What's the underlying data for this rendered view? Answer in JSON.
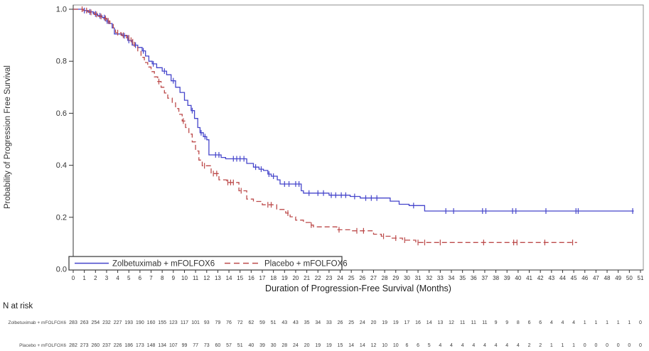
{
  "chart_data": {
    "type": "line",
    "subtype": "kaplan-meier-step",
    "title": "",
    "xlabel": "Duration of Progression-Free Survival (Months)",
    "ylabel": "Probability of Progression Free Survival",
    "xlim": [
      0,
      51
    ],
    "ylim": [
      0.0,
      1.0
    ],
    "grid": false,
    "legend_position": "inside-bottom-left",
    "x_ticks": [
      0,
      1,
      2,
      3,
      4,
      5,
      6,
      7,
      8,
      9,
      10,
      11,
      12,
      13,
      14,
      15,
      16,
      17,
      18,
      19,
      20,
      21,
      22,
      23,
      24,
      25,
      26,
      27,
      28,
      29,
      30,
      31,
      32,
      33,
      34,
      35,
      36,
      37,
      38,
      39,
      40,
      41,
      42,
      43,
      44,
      45,
      46,
      47,
      48,
      49,
      50,
      51
    ],
    "y_ticks": [
      0.0,
      0.2,
      0.4,
      0.6,
      0.8,
      1.0
    ],
    "y_tick_labels": [
      "0.0",
      "0.2",
      "0.4",
      "0.6",
      "0.8",
      "1.0"
    ],
    "frame_color": "#8f8f8f",
    "axis_color": "#333333",
    "series": [
      {
        "name": "Zolbetuximab + mFOLFOX6",
        "color": "#4545cb",
        "line_style": "solid",
        "end_time": 50.4,
        "steps": [
          [
            0,
            1.0
          ],
          [
            0.9,
            0.995
          ],
          [
            1.3,
            0.99
          ],
          [
            1.8,
            0.982
          ],
          [
            2.2,
            0.975
          ],
          [
            2.6,
            0.968
          ],
          [
            2.9,
            0.955
          ],
          [
            3.2,
            0.945
          ],
          [
            3.5,
            0.928
          ],
          [
            3.7,
            0.905
          ],
          [
            4.4,
            0.898
          ],
          [
            4.9,
            0.88
          ],
          [
            5.3,
            0.862
          ],
          [
            5.8,
            0.853
          ],
          [
            6.2,
            0.84
          ],
          [
            6.5,
            0.82
          ],
          [
            6.8,
            0.8
          ],
          [
            7.1,
            0.79
          ],
          [
            7.5,
            0.775
          ],
          [
            8.0,
            0.762
          ],
          [
            8.4,
            0.748
          ],
          [
            8.8,
            0.725
          ],
          [
            9.2,
            0.7
          ],
          [
            9.6,
            0.68
          ],
          [
            10.0,
            0.65
          ],
          [
            10.3,
            0.63
          ],
          [
            10.6,
            0.61
          ],
          [
            10.9,
            0.58
          ],
          [
            11.2,
            0.545
          ],
          [
            11.4,
            0.525
          ],
          [
            11.7,
            0.51
          ],
          [
            12.0,
            0.498
          ],
          [
            12.2,
            0.44
          ],
          [
            13.3,
            0.43
          ],
          [
            13.7,
            0.425
          ],
          [
            15.6,
            0.407
          ],
          [
            16.2,
            0.393
          ],
          [
            16.7,
            0.385
          ],
          [
            17.1,
            0.38
          ],
          [
            17.5,
            0.366
          ],
          [
            17.8,
            0.358
          ],
          [
            18.35,
            0.344
          ],
          [
            18.6,
            0.328
          ],
          [
            20.5,
            0.302
          ],
          [
            20.7,
            0.293
          ],
          [
            23.0,
            0.285
          ],
          [
            24.9,
            0.28
          ],
          [
            25.8,
            0.274
          ],
          [
            28.5,
            0.262
          ],
          [
            29.3,
            0.25
          ],
          [
            30.2,
            0.245
          ],
          [
            31.6,
            0.224
          ]
        ],
        "censor_marks": [
          [
            1.0,
            0.995
          ],
          [
            1.5,
            0.99
          ],
          [
            2.0,
            0.982
          ],
          [
            2.4,
            0.975
          ],
          [
            2.8,
            0.968
          ],
          [
            3.05,
            0.955
          ],
          [
            4.6,
            0.898
          ],
          [
            5.0,
            0.88
          ],
          [
            5.6,
            0.862
          ],
          [
            6.3,
            0.84
          ],
          [
            7.2,
            0.79
          ],
          [
            8.2,
            0.762
          ],
          [
            9.0,
            0.725
          ],
          [
            10.7,
            0.61
          ],
          [
            11.5,
            0.525
          ],
          [
            11.85,
            0.51
          ],
          [
            12.8,
            0.44
          ],
          [
            13.1,
            0.44
          ],
          [
            14.4,
            0.425
          ],
          [
            14.7,
            0.425
          ],
          [
            15.0,
            0.425
          ],
          [
            15.35,
            0.425
          ],
          [
            16.4,
            0.393
          ],
          [
            16.9,
            0.385
          ],
          [
            17.6,
            0.366
          ],
          [
            18.0,
            0.358
          ],
          [
            19.0,
            0.328
          ],
          [
            19.4,
            0.328
          ],
          [
            20.0,
            0.328
          ],
          [
            20.3,
            0.328
          ],
          [
            21.2,
            0.293
          ],
          [
            22.0,
            0.293
          ],
          [
            22.5,
            0.293
          ],
          [
            23.2,
            0.285
          ],
          [
            23.6,
            0.285
          ],
          [
            24.1,
            0.285
          ],
          [
            24.5,
            0.285
          ],
          [
            25.3,
            0.28
          ],
          [
            26.3,
            0.274
          ],
          [
            26.8,
            0.274
          ],
          [
            27.3,
            0.274
          ],
          [
            30.6,
            0.245
          ],
          [
            33.5,
            0.224
          ],
          [
            34.2,
            0.224
          ],
          [
            36.8,
            0.224
          ],
          [
            37.1,
            0.224
          ],
          [
            39.5,
            0.224
          ],
          [
            39.8,
            0.224
          ],
          [
            42.5,
            0.224
          ],
          [
            45.2,
            0.224
          ],
          [
            45.4,
            0.224
          ],
          [
            50.3,
            0.224
          ]
        ]
      },
      {
        "name": "Placebo + mFOLFOX6",
        "color": "#bc4a4a",
        "line_style": "dashed",
        "end_time": 45.3,
        "steps": [
          [
            0,
            1.0
          ],
          [
            0.9,
            0.995
          ],
          [
            1.4,
            0.988
          ],
          [
            1.9,
            0.98
          ],
          [
            2.3,
            0.972
          ],
          [
            2.7,
            0.965
          ],
          [
            3.0,
            0.955
          ],
          [
            3.3,
            0.945
          ],
          [
            3.6,
            0.928
          ],
          [
            3.8,
            0.91
          ],
          [
            4.3,
            0.9
          ],
          [
            4.8,
            0.89
          ],
          [
            5.2,
            0.875
          ],
          [
            5.5,
            0.855
          ],
          [
            5.8,
            0.838
          ],
          [
            6.1,
            0.815
          ],
          [
            6.4,
            0.795
          ],
          [
            6.7,
            0.778
          ],
          [
            7.0,
            0.76
          ],
          [
            7.3,
            0.74
          ],
          [
            7.6,
            0.722
          ],
          [
            7.9,
            0.7
          ],
          [
            8.2,
            0.678
          ],
          [
            8.5,
            0.658
          ],
          [
            8.9,
            0.64
          ],
          [
            9.2,
            0.618
          ],
          [
            9.5,
            0.596
          ],
          [
            9.8,
            0.57
          ],
          [
            10.1,
            0.545
          ],
          [
            10.4,
            0.52
          ],
          [
            10.7,
            0.49
          ],
          [
            11.0,
            0.455
          ],
          [
            11.3,
            0.42
          ],
          [
            11.6,
            0.398
          ],
          [
            12.4,
            0.368
          ],
          [
            13.1,
            0.344
          ],
          [
            13.8,
            0.334
          ],
          [
            14.9,
            0.302
          ],
          [
            15.6,
            0.27
          ],
          [
            16.2,
            0.261
          ],
          [
            17.0,
            0.248
          ],
          [
            18.3,
            0.23
          ],
          [
            19.1,
            0.216
          ],
          [
            19.5,
            0.202
          ],
          [
            20.0,
            0.189
          ],
          [
            20.7,
            0.18
          ],
          [
            21.3,
            0.17
          ],
          [
            21.6,
            0.163
          ],
          [
            23.7,
            0.152
          ],
          [
            25.0,
            0.148
          ],
          [
            27.0,
            0.135
          ],
          [
            27.7,
            0.127
          ],
          [
            28.6,
            0.12
          ],
          [
            29.6,
            0.112
          ],
          [
            30.8,
            0.103
          ]
        ],
        "censor_marks": [
          [
            0.8,
            1.0
          ],
          [
            1.2,
            0.995
          ],
          [
            1.6,
            0.988
          ],
          [
            2.1,
            0.98
          ],
          [
            2.5,
            0.972
          ],
          [
            2.9,
            0.965
          ],
          [
            3.15,
            0.955
          ],
          [
            4.0,
            0.91
          ],
          [
            4.5,
            0.9
          ],
          [
            5.0,
            0.89
          ],
          [
            5.35,
            0.875
          ],
          [
            7.7,
            0.722
          ],
          [
            9.9,
            0.57
          ],
          [
            11.8,
            0.398
          ],
          [
            12.6,
            0.368
          ],
          [
            12.9,
            0.368
          ],
          [
            13.9,
            0.334
          ],
          [
            14.15,
            0.334
          ],
          [
            14.4,
            0.334
          ],
          [
            15.1,
            0.302
          ],
          [
            17.5,
            0.248
          ],
          [
            17.8,
            0.248
          ],
          [
            19.3,
            0.216
          ],
          [
            21.4,
            0.17
          ],
          [
            23.9,
            0.152
          ],
          [
            25.5,
            0.148
          ],
          [
            26.1,
            0.148
          ],
          [
            27.9,
            0.127
          ],
          [
            29.0,
            0.12
          ],
          [
            29.8,
            0.112
          ],
          [
            31.0,
            0.103
          ],
          [
            31.6,
            0.103
          ],
          [
            33.0,
            0.103
          ],
          [
            36.9,
            0.103
          ],
          [
            39.6,
            0.103
          ],
          [
            39.9,
            0.103
          ],
          [
            42.4,
            0.103
          ],
          [
            44.9,
            0.103
          ]
        ]
      }
    ]
  },
  "at_risk": {
    "title": "N at risk",
    "time_points": [
      0,
      1,
      2,
      3,
      4,
      5,
      6,
      7,
      8,
      9,
      10,
      11,
      12,
      13,
      14,
      15,
      16,
      17,
      18,
      19,
      20,
      21,
      22,
      23,
      24,
      25,
      26,
      27,
      28,
      29,
      30,
      31,
      32,
      33,
      34,
      35,
      36,
      37,
      38,
      39,
      40,
      41,
      42,
      43,
      44,
      45,
      46,
      47,
      48,
      49,
      50,
      51
    ],
    "rows": [
      {
        "label": "Zolbetuximab + mFOLFOX6",
        "values": [
          283,
          263,
          254,
          232,
          227,
          193,
          190,
          160,
          155,
          123,
          117,
          101,
          93,
          79,
          76,
          72,
          62,
          59,
          51,
          43,
          43,
          35,
          34,
          33,
          26,
          25,
          24,
          20,
          19,
          19,
          17,
          16,
          14,
          13,
          12,
          11,
          11,
          11,
          9,
          9,
          8,
          6,
          6,
          4,
          4,
          4,
          1,
          1,
          1,
          1,
          1,
          0
        ]
      },
      {
        "label": "Placebo + mFOLFOX6",
        "values": [
          282,
          273,
          260,
          237,
          226,
          186,
          173,
          148,
          134,
          107,
          99,
          77,
          73,
          60,
          57,
          51,
          40,
          39,
          30,
          28,
          24,
          20,
          19,
          19,
          15,
          14,
          14,
          12,
          10,
          10,
          6,
          6,
          5,
          4,
          4,
          4,
          4,
          4,
          4,
          4,
          4,
          2,
          2,
          1,
          1,
          1,
          0,
          0,
          0,
          0,
          0,
          0
        ]
      }
    ]
  }
}
